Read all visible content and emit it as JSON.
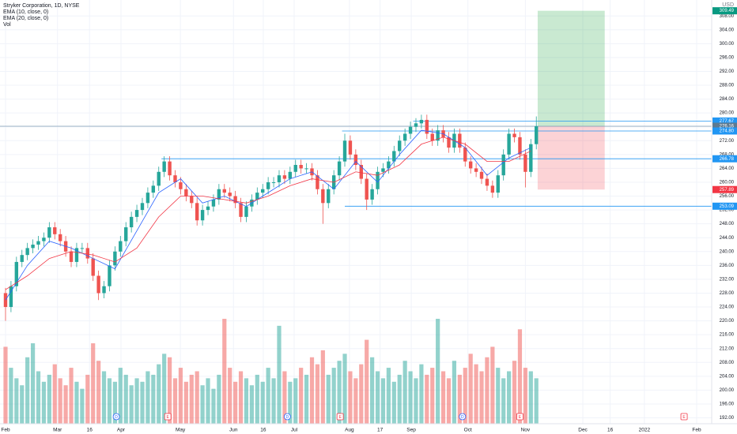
{
  "chart_data": {
    "type": "candlestick",
    "title": "Stryker Corporation, 1D, NYSE",
    "currency": "USD",
    "volume_label": "Vol",
    "grid": true,
    "up_color": "#26a69a",
    "down_color": "#ef5350",
    "x": [
      0,
      2,
      4,
      6,
      8,
      10,
      12,
      14,
      16,
      18,
      20,
      22,
      24,
      26,
      28,
      30,
      32,
      34,
      36,
      38,
      40,
      42,
      44,
      46,
      48,
      50,
      52,
      54,
      56,
      58,
      60,
      62,
      64,
      66,
      68,
      70,
      72,
      74,
      76,
      78,
      80,
      82,
      84,
      86,
      88,
      90,
      92,
      94,
      96,
      98,
      100,
      102,
      104,
      106,
      108,
      110,
      112,
      114,
      116,
      118,
      120,
      122,
      124,
      126,
      128,
      130,
      132,
      134,
      136,
      138,
      140,
      142,
      144,
      146,
      148,
      150,
      152,
      154,
      156,
      158,
      160,
      162,
      164,
      166,
      168,
      170,
      172,
      174,
      176,
      178,
      180,
      182,
      184,
      186,
      188,
      190,
      192,
      194
    ],
    "open": [
      228,
      224,
      230,
      237,
      239,
      241,
      242,
      243,
      244,
      247,
      245,
      243,
      240,
      237,
      241,
      241,
      238,
      233,
      228,
      230,
      236,
      240,
      243,
      247,
      250,
      252,
      254,
      257,
      259,
      263,
      266,
      262,
      260,
      258,
      256,
      254,
      249,
      252,
      253,
      255,
      258,
      257,
      256,
      254,
      250,
      253,
      255,
      257,
      258,
      260,
      260,
      262,
      261,
      263,
      265,
      264,
      264,
      262,
      258,
      254,
      258,
      262,
      266,
      272,
      268,
      265,
      261,
      255,
      258,
      263,
      264,
      266,
      269,
      272,
      274,
      276,
      277,
      278,
      274,
      272,
      275,
      273,
      270,
      274,
      270,
      266,
      264,
      263,
      261,
      259,
      257,
      262,
      268,
      274,
      273,
      268,
      263,
      271
    ],
    "high": [
      229.5,
      231.5,
      238.5,
      240.5,
      242.5,
      243.5,
      244.5,
      245.5,
      248.5,
      248.5,
      246.5,
      244.5,
      241.5,
      242.5,
      242.5,
      242.5,
      239.5,
      234.5,
      231.5,
      237.5,
      241.5,
      244.5,
      248.5,
      251.5,
      253.5,
      255.5,
      258.5,
      260.5,
      264.5,
      267.5,
      267.5,
      263.5,
      261.5,
      259.5,
      257.5,
      255.5,
      253.5,
      254.5,
      256.5,
      259.5,
      259.5,
      258.5,
      257.5,
      255.5,
      254.5,
      256.5,
      258.5,
      259.5,
      261.5,
      261.5,
      263.5,
      263.5,
      264.5,
      266.5,
      266.5,
      265.5,
      265.5,
      263.5,
      259.5,
      259.5,
      263.5,
      267.5,
      274,
      273.5,
      269.5,
      266.5,
      262.5,
      259.5,
      264.5,
      265.5,
      267.5,
      270.5,
      273.5,
      275.5,
      277.5,
      278.5,
      279.5,
      279.5,
      275.5,
      276.5,
      276.5,
      274.5,
      275.5,
      275.5,
      271.5,
      267.5,
      265.5,
      264.5,
      262.5,
      260.5,
      263.5,
      269.5,
      275.5,
      275.5,
      274.5,
      269.5,
      272.5,
      279
    ],
    "low": [
      220,
      222.5,
      228.5,
      235.5,
      237.5,
      239.5,
      240.5,
      241.5,
      242.5,
      243.5,
      241.5,
      238.5,
      235.5,
      235.5,
      239.5,
      236.5,
      231.5,
      226,
      226.5,
      228.5,
      234.5,
      238.5,
      241.5,
      245.5,
      248.5,
      250.5,
      252.5,
      255.5,
      257.5,
      261.5,
      260.5,
      258.5,
      256.5,
      254.5,
      252.5,
      247.5,
      247.5,
      250.5,
      251.5,
      253.5,
      255.5,
      254.5,
      252.5,
      248.5,
      248.5,
      251.5,
      253.5,
      255.5,
      256.5,
      258.5,
      258.5,
      259.5,
      259.5,
      261.5,
      262.5,
      262.5,
      260.5,
      256.5,
      248,
      252.5,
      256.5,
      260.5,
      264.5,
      266.5,
      263.5,
      259.5,
      252,
      253.5,
      256.5,
      261.5,
      262.5,
      264.5,
      267.5,
      270.5,
      272.5,
      274.5,
      275.5,
      272.5,
      270.5,
      270.5,
      271.5,
      268.5,
      268.5,
      268.5,
      264.5,
      262.5,
      261.5,
      259.5,
      257.5,
      255.5,
      255.5,
      260.5,
      266.5,
      271.5,
      266.5,
      258.5,
      261.5,
      269.5
    ],
    "close": [
      224,
      230,
      237,
      239,
      241,
      242,
      243,
      244,
      247,
      245,
      243,
      240,
      237,
      241,
      241,
      238,
      233,
      228,
      230,
      236,
      240,
      243,
      247,
      250,
      252,
      254,
      257,
      259,
      263,
      266,
      262,
      260,
      258,
      256,
      254,
      249,
      252,
      253,
      255,
      258,
      257,
      256,
      254,
      250,
      253,
      255,
      257,
      258,
      260,
      260,
      262,
      261,
      263,
      265,
      264,
      264,
      262,
      258,
      254,
      258,
      262,
      266,
      272,
      268,
      265,
      261,
      255,
      258,
      263,
      264,
      266,
      269,
      272,
      274,
      276,
      277,
      278,
      274,
      272,
      275,
      273,
      270,
      274,
      270,
      266,
      264,
      263,
      261,
      259,
      257,
      262,
      268,
      274,
      273,
      268,
      263,
      271,
      276.16
    ],
    "volume": [
      2.2,
      1.6,
      1.3,
      1.1,
      1.9,
      2.3,
      1.5,
      1.2,
      1.4,
      1.7,
      1.3,
      1.1,
      1.6,
      1.2,
      1.0,
      1.4,
      2.3,
      1.8,
      1.5,
      1.3,
      1.2,
      1.6,
      1.4,
      1.1,
      1.3,
      1.2,
      1.5,
      1.4,
      1.7,
      2.0,
      1.9,
      1.3,
      1.6,
      1.2,
      1.4,
      1.5,
      1.1,
      1.3,
      1.0,
      1.4,
      3.0,
      1.6,
      1.2,
      1.5,
      1.3,
      1.1,
      1.4,
      1.2,
      1.6,
      1.3,
      2.8,
      1.5,
      1.2,
      1.3,
      1.6,
      1.4,
      1.9,
      1.7,
      2.1,
      1.4,
      1.6,
      1.8,
      2.0,
      1.5,
      1.3,
      1.7,
      2.4,
      1.9,
      1.5,
      1.3,
      1.6,
      1.2,
      1.4,
      1.8,
      1.5,
      1.3,
      1.7,
      1.4,
      1.6,
      3.0,
      1.5,
      1.3,
      1.8,
      1.4,
      1.6,
      2.0,
      1.7,
      1.5,
      1.9,
      2.2,
      1.6,
      1.3,
      1.5,
      1.8,
      2.7,
      1.6,
      1.5,
      1.3
    ],
    "series": [
      {
        "name": "EMA (10, close, 0)",
        "color": "#2962ff",
        "x": [
          0,
          8,
          16,
          24,
          32,
          40,
          48,
          56,
          64,
          72,
          80,
          88,
          96,
          104,
          112,
          120,
          128,
          136,
          144,
          152,
          160,
          168,
          176,
          184,
          192
        ],
        "values": [
          226,
          236,
          243,
          241,
          238,
          235,
          246,
          257,
          261,
          254,
          256,
          253,
          257,
          261,
          263,
          258,
          266,
          260,
          268,
          275,
          274,
          270,
          262,
          267,
          270
        ]
      },
      {
        "name": "EMA (20, close, 0)",
        "color": "#f23645",
        "x": [
          0,
          8,
          16,
          24,
          32,
          40,
          48,
          56,
          64,
          72,
          80,
          88,
          96,
          104,
          112,
          120,
          128,
          136,
          144,
          152,
          160,
          168,
          176,
          184,
          192
        ],
        "values": [
          229,
          233,
          238,
          240,
          239,
          237,
          241,
          250,
          256,
          256,
          255,
          254,
          256,
          259,
          261,
          260,
          263,
          262,
          265,
          271,
          273,
          271,
          266,
          266,
          269
        ]
      }
    ],
    "xlim": [
      -2.02,
      258.1
    ],
    "xticks": [
      {
        "value": 0,
        "label": "Feb"
      },
      {
        "value": 19,
        "label": "Mar"
      },
      {
        "value": 30.7,
        "label": "16"
      },
      {
        "value": 42.2,
        "label": "Apr"
      },
      {
        "value": 63.9,
        "label": "May"
      },
      {
        "value": 83.3,
        "label": "Jun"
      },
      {
        "value": 94.2,
        "label": "16"
      },
      {
        "value": 105.5,
        "label": "Jul"
      },
      {
        "value": 125.7,
        "label": "Aug"
      },
      {
        "value": 136.9,
        "label": "17"
      },
      {
        "value": 148.3,
        "label": "Sep"
      },
      {
        "value": 169,
        "label": "Oct"
      },
      {
        "value": 190,
        "label": "Nov"
      },
      {
        "value": 211,
        "label": "Dec"
      },
      {
        "value": 221,
        "label": "16"
      },
      {
        "value": 233.5,
        "label": "2022"
      },
      {
        "value": 252.6,
        "label": "Feb"
      }
    ],
    "ylim": [
      190.3,
      312.6
    ],
    "yticks": [
      {
        "value": 192,
        "label": "192.00"
      },
      {
        "value": 196,
        "label": "196.00"
      },
      {
        "value": 200,
        "label": "200.00"
      },
      {
        "value": 204,
        "label": "204.00"
      },
      {
        "value": 208,
        "label": "208.00"
      },
      {
        "value": 212,
        "label": "212.00"
      },
      {
        "value": 216,
        "label": "216.00"
      },
      {
        "value": 220,
        "label": "220.00"
      },
      {
        "value": 224,
        "label": "224.00"
      },
      {
        "value": 228,
        "label": "228.00"
      },
      {
        "value": 232,
        "label": "232.00"
      },
      {
        "value": 236,
        "label": "236.00"
      },
      {
        "value": 240,
        "label": "240.00"
      },
      {
        "value": 244,
        "label": "244.00"
      },
      {
        "value": 248,
        "label": "248.00"
      },
      {
        "value": 252,
        "label": "252.00"
      },
      {
        "value": 256,
        "label": "256.00"
      },
      {
        "value": 260,
        "label": "260.00"
      },
      {
        "value": 264,
        "label": "264.00"
      },
      {
        "value": 268,
        "label": "268.00"
      },
      {
        "value": 272,
        "label": "272.00"
      },
      {
        "value": 276,
        "label": "276.00"
      },
      {
        "value": 280,
        "label": "280.00"
      },
      {
        "value": 284,
        "label": "284.00"
      },
      {
        "value": 288,
        "label": "288.00"
      },
      {
        "value": 292,
        "label": "292.00"
      },
      {
        "value": 296,
        "label": "296.00"
      },
      {
        "value": 300,
        "label": "300.00"
      },
      {
        "value": 304,
        "label": "304.00"
      },
      {
        "value": 308,
        "label": "308.00"
      }
    ],
    "levels": [
      {
        "value": 277.67,
        "label": "277.67",
        "from": 149
      },
      {
        "value": 276.16,
        "label": "276.16",
        "from": -2.02
      },
      {
        "value": 274.8,
        "label": "274.80",
        "from": 123
      },
      {
        "value": 266.78,
        "label": "266.78",
        "from": 57
      },
      {
        "value": 253.09,
        "label": "253.09",
        "from": 124
      }
    ],
    "position": {
      "from": 194.5,
      "to": 219,
      "entry": 276.16,
      "target": {
        "value": 309.49,
        "label": "309.49"
      },
      "stop": {
        "value": 257.89,
        "label": "257.89"
      }
    },
    "events": [
      {
        "x": 40.5,
        "label": "D"
      },
      {
        "x": 59.3,
        "label": "E"
      },
      {
        "x": 103,
        "label": "D"
      },
      {
        "x": 122.3,
        "label": "E"
      },
      {
        "x": 167,
        "label": "D"
      },
      {
        "x": 188,
        "label": "E"
      },
      {
        "x": 248,
        "label": "E"
      }
    ]
  }
}
